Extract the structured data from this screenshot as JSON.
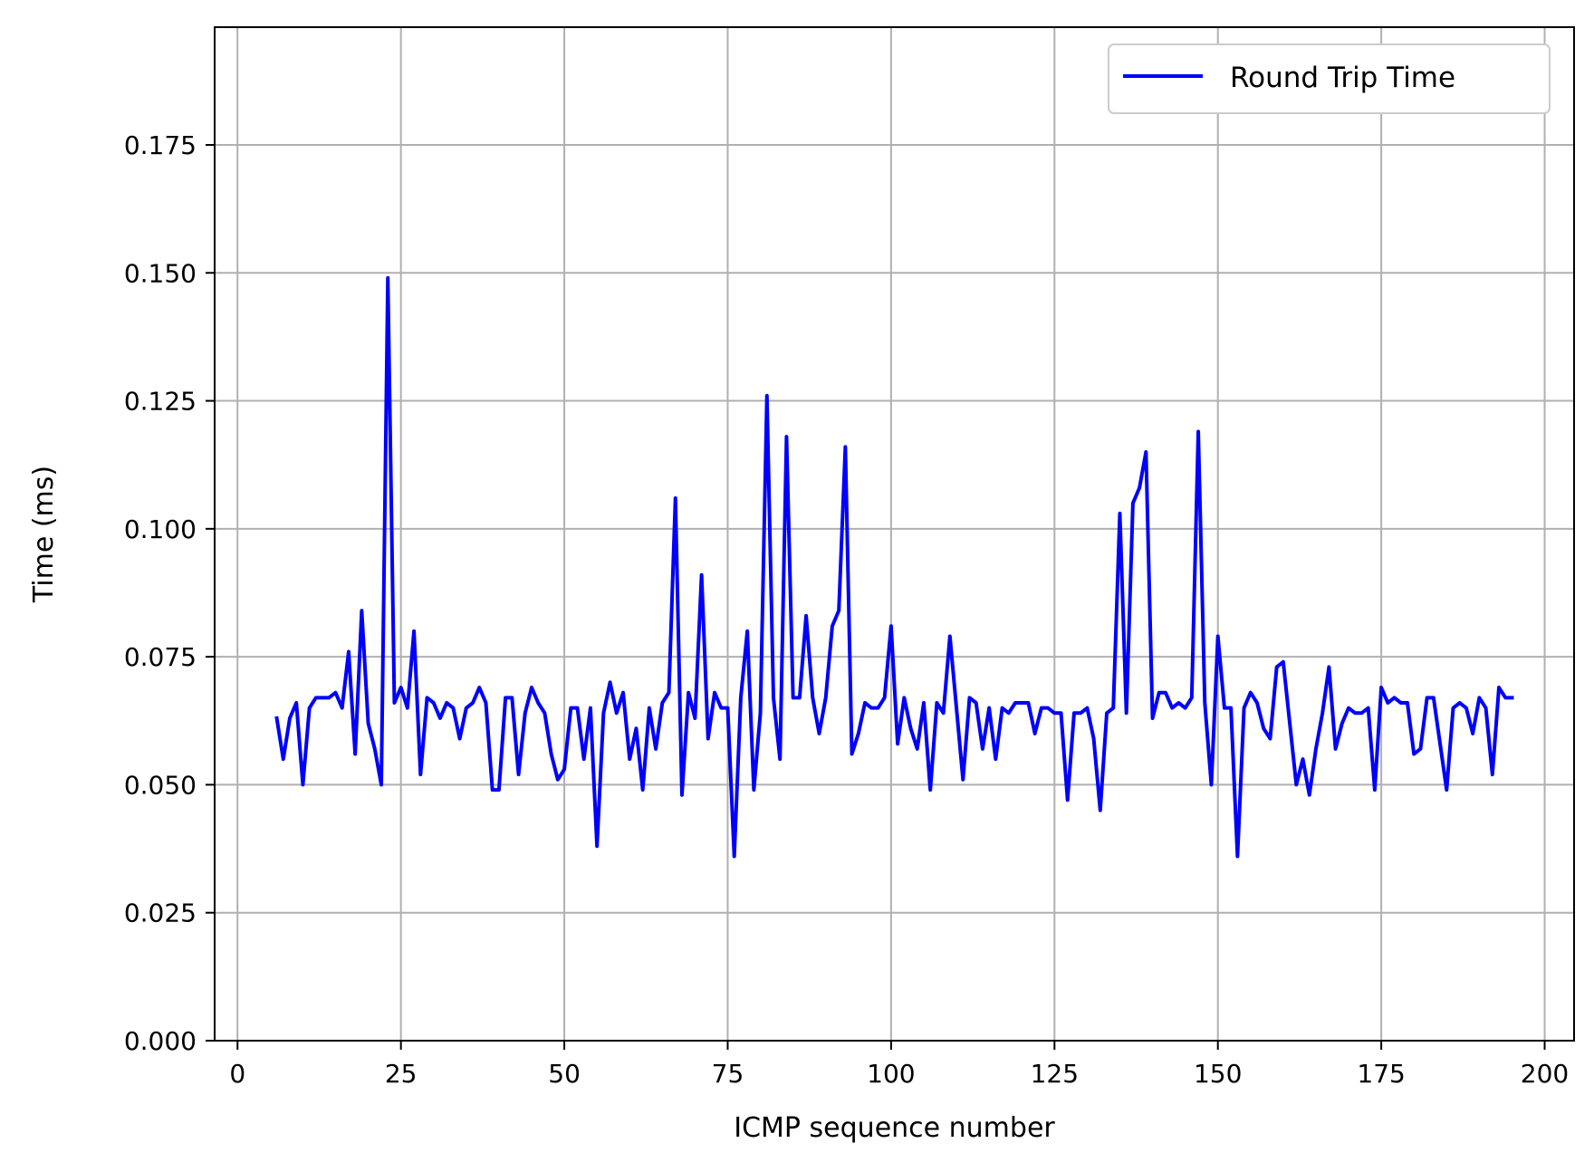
{
  "chart_data": {
    "type": "line",
    "title": "",
    "xlabel": "ICMP sequence number",
    "ylabel": "Time (ms)",
    "xlim": [
      -3.5,
      204.5
    ],
    "ylim": [
      0,
      0.198
    ],
    "xticks": [
      0,
      25,
      50,
      75,
      100,
      125,
      150,
      175,
      200
    ],
    "yticks": [
      0.0,
      0.025,
      0.05,
      0.075,
      0.1,
      0.125,
      0.15,
      0.175
    ],
    "xtick_labels": [
      "0",
      "25",
      "50",
      "75",
      "100",
      "125",
      "150",
      "175",
      "200"
    ],
    "ytick_labels": [
      "0.000",
      "0.025",
      "0.050",
      "0.075",
      "0.100",
      "0.125",
      "0.150",
      "0.175"
    ],
    "grid": true,
    "legend_position": "top-right",
    "colors": {
      "series": "#0000ff",
      "grid": "#b0b0b0",
      "axes": "#000000"
    },
    "series": [
      {
        "name": "Round Trip Time",
        "x": [
          6,
          7,
          8,
          9,
          10,
          11,
          12,
          13,
          14,
          15,
          16,
          17,
          18,
          19,
          20,
          21,
          22,
          23,
          24,
          25,
          26,
          27,
          28,
          29,
          30,
          31,
          32,
          33,
          34,
          35,
          36,
          37,
          38,
          39,
          40,
          41,
          42,
          43,
          44,
          45,
          46,
          47,
          48,
          49,
          50,
          51,
          52,
          53,
          54,
          55,
          56,
          57,
          58,
          59,
          60,
          61,
          62,
          63,
          64,
          65,
          66,
          67,
          68,
          69,
          70,
          71,
          72,
          73,
          74,
          75,
          76,
          77,
          78,
          79,
          80,
          81,
          82,
          83,
          84,
          85,
          86,
          87,
          88,
          89,
          90,
          91,
          92,
          93,
          94,
          95,
          96,
          97,
          98,
          99,
          100,
          101,
          102,
          103,
          104,
          105,
          106,
          107,
          108,
          109,
          110,
          111,
          112,
          113,
          114,
          115,
          116,
          117,
          118,
          119,
          120,
          121,
          122,
          123,
          124,
          125,
          126,
          127,
          128,
          129,
          130,
          131,
          132,
          133,
          134,
          135,
          136,
          137,
          138,
          139,
          140,
          141,
          142,
          143,
          144,
          145,
          146,
          147,
          148,
          149,
          150,
          151,
          152,
          153,
          154,
          155,
          156,
          157,
          158,
          159,
          160,
          161,
          162,
          163,
          164,
          165,
          166,
          167,
          168,
          169,
          170,
          171,
          172,
          173,
          174,
          175,
          176,
          177,
          178,
          179,
          180,
          181,
          182,
          183,
          184,
          185,
          186,
          187,
          188,
          189,
          190,
          191,
          192,
          193,
          194,
          195
        ],
        "y": [
          0.063,
          0.055,
          0.063,
          0.066,
          0.05,
          0.065,
          0.067,
          0.067,
          0.067,
          0.068,
          0.065,
          0.076,
          0.056,
          0.084,
          0.062,
          0.057,
          0.05,
          0.149,
          0.066,
          0.069,
          0.065,
          0.08,
          0.052,
          0.067,
          0.066,
          0.063,
          0.066,
          0.065,
          0.059,
          0.065,
          0.066,
          0.069,
          0.066,
          0.049,
          0.049,
          0.067,
          0.067,
          0.052,
          0.064,
          0.069,
          0.066,
          0.064,
          0.056,
          0.051,
          0.053,
          0.065,
          0.065,
          0.055,
          0.065,
          0.038,
          0.064,
          0.07,
          0.064,
          0.068,
          0.055,
          0.061,
          0.049,
          0.065,
          0.057,
          0.066,
          0.068,
          0.106,
          0.048,
          0.068,
          0.063,
          0.091,
          0.059,
          0.068,
          0.065,
          0.065,
          0.036,
          0.067,
          0.08,
          0.049,
          0.064,
          0.126,
          0.067,
          0.055,
          0.118,
          0.067,
          0.067,
          0.083,
          0.067,
          0.06,
          0.067,
          0.081,
          0.084,
          0.116,
          0.056,
          0.06,
          0.066,
          0.065,
          0.065,
          0.067,
          0.081,
          0.058,
          0.067,
          0.061,
          0.057,
          0.066,
          0.049,
          0.066,
          0.064,
          0.079,
          0.065,
          0.051,
          0.067,
          0.066,
          0.057,
          0.065,
          0.055,
          0.065,
          0.064,
          0.066,
          0.066,
          0.066,
          0.06,
          0.065,
          0.065,
          0.064,
          0.064,
          0.047,
          0.064,
          0.064,
          0.065,
          0.059,
          0.045,
          0.064,
          0.065,
          0.103,
          0.064,
          0.105,
          0.108,
          0.115,
          0.063,
          0.068,
          0.068,
          0.065,
          0.066,
          0.065,
          0.067,
          0.119,
          0.066,
          0.05,
          0.079,
          0.065,
          0.065,
          0.036,
          0.065,
          0.068,
          0.066,
          0.061,
          0.059,
          0.073,
          0.074,
          0.062,
          0.05,
          0.055,
          0.048,
          0.057,
          0.064,
          0.073,
          0.057,
          0.062,
          0.065,
          0.064,
          0.064,
          0.065,
          0.049,
          0.069,
          0.066,
          0.067,
          0.066,
          0.066,
          0.056,
          0.057,
          0.067,
          0.067,
          0.058,
          0.049,
          0.065,
          0.066,
          0.065,
          0.06,
          0.067,
          0.065,
          0.052,
          0.069,
          0.067,
          0.067
        ]
      }
    ]
  }
}
